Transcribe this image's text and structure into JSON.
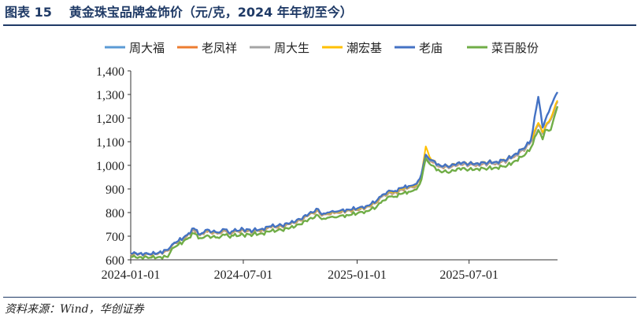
{
  "figure": {
    "label": "图表 15",
    "title": "黄金珠宝品牌金饰价（元/克，2024 年年初至今）"
  },
  "source": "资料来源：Wind，华创证券",
  "chart_data": {
    "type": "line",
    "title": "",
    "xlabel": "",
    "ylabel": "",
    "ylim": [
      600,
      1400
    ],
    "yticks": [
      600,
      700,
      800,
      900,
      1000,
      1100,
      1200,
      1300,
      1400
    ],
    "ytick_labels": [
      "600",
      "700",
      "800",
      "900",
      "1,000",
      "1,100",
      "1,200",
      "1,300",
      "1,400"
    ],
    "xlim": [
      "2024-01-01",
      "2025-11-21"
    ],
    "xticks": [
      "2024-01-01",
      "2024-07-01",
      "2025-01-01",
      "2025-07-01"
    ],
    "grid": false,
    "legend_position": "top",
    "x": [
      "2024-01-01",
      "2024-01-15",
      "2024-02-01",
      "2024-02-15",
      "2024-03-01",
      "2024-03-08",
      "2024-03-15",
      "2024-04-01",
      "2024-04-12",
      "2024-04-22",
      "2024-05-01",
      "2024-05-20",
      "2024-06-01",
      "2024-06-07",
      "2024-06-15",
      "2024-07-01",
      "2024-07-17",
      "2024-08-01",
      "2024-08-15",
      "2024-09-01",
      "2024-09-15",
      "2024-10-01",
      "2024-10-15",
      "2024-10-30",
      "2024-11-05",
      "2024-11-14",
      "2024-11-25",
      "2024-12-01",
      "2024-12-15",
      "2025-01-01",
      "2025-01-15",
      "2025-02-01",
      "2025-02-11",
      "2025-02-24",
      "2025-03-01",
      "2025-03-15",
      "2025-03-25",
      "2025-04-01",
      "2025-04-07",
      "2025-04-15",
      "2025-04-22",
      "2025-05-01",
      "2025-05-15",
      "2025-06-01",
      "2025-06-15",
      "2025-07-01",
      "2025-07-15",
      "2025-08-01",
      "2025-08-15",
      "2025-09-01",
      "2025-09-15",
      "2025-10-01",
      "2025-10-09",
      "2025-10-21",
      "2025-10-28",
      "2025-11-01",
      "2025-11-10",
      "2025-11-21"
    ],
    "series": [
      {
        "name": "周大福",
        "color": "#5b9bd5",
        "values": [
          625,
          625,
          622,
          628,
          640,
          662,
          672,
          702,
          728,
          705,
          722,
          712,
          725,
          712,
          718,
          725,
          720,
          728,
          738,
          742,
          752,
          768,
          790,
          810,
          788,
          795,
          798,
          800,
          808,
          812,
          822,
          842,
          870,
          885,
          882,
          898,
          905,
          908,
          915,
          955,
          1038,
          1018,
          995,
          992,
          1008,
          1002,
          1004,
          1008,
          1010,
          1022,
          1045,
          1075,
          1100,
          1175,
          1135,
          1160,
          1195,
          1270
        ]
      },
      {
        "name": "老凤祥",
        "color": "#ed7d31",
        "values": [
          623,
          623,
          621,
          626,
          638,
          660,
          670,
          700,
          726,
          703,
          720,
          710,
          723,
          710,
          716,
          723,
          718,
          726,
          736,
          740,
          750,
          766,
          788,
          808,
          786,
          793,
          796,
          798,
          806,
          810,
          820,
          840,
          868,
          883,
          880,
          896,
          903,
          906,
          913,
          953,
          1036,
          1016,
          993,
          990,
          1006,
          1000,
          1002,
          1006,
          1008,
          1020,
          1043,
          1073,
          1098,
          1173,
          1133,
          1158,
          1193,
          1268
        ]
      },
      {
        "name": "周大生",
        "color": "#a5a5a5",
        "values": [
          624,
          624,
          621,
          627,
          639,
          661,
          671,
          701,
          727,
          704,
          721,
          711,
          724,
          711,
          717,
          724,
          719,
          727,
          737,
          741,
          751,
          767,
          789,
          809,
          787,
          794,
          797,
          799,
          807,
          811,
          821,
          841,
          869,
          884,
          881,
          897,
          904,
          907,
          914,
          954,
          1037,
          1017,
          994,
          991,
          1007,
          1001,
          1003,
          1007,
          1009,
          1021,
          1044,
          1074,
          1099,
          1174,
          1134,
          1159,
          1194,
          1269
        ]
      },
      {
        "name": "潮宏基",
        "color": "#ffc000",
        "values": [
          626,
          626,
          623,
          629,
          641,
          664,
          674,
          704,
          732,
          707,
          724,
          714,
          727,
          714,
          720,
          727,
          722,
          730,
          740,
          744,
          754,
          770,
          792,
          812,
          790,
          797,
          800,
          802,
          810,
          814,
          824,
          844,
          874,
          888,
          885,
          901,
          908,
          911,
          918,
          960,
          1080,
          1024,
          1000,
          998,
          1014,
          1008,
          1010,
          1014,
          1016,
          1028,
          1051,
          1081,
          1106,
          1180,
          1140,
          1165,
          1200,
          1275
        ]
      },
      {
        "name": "老庙",
        "color": "#4472c4",
        "values": [
          627,
          627,
          624,
          630,
          642,
          665,
          675,
          705,
          733,
          708,
          726,
          716,
          729,
          716,
          722,
          729,
          724,
          732,
          742,
          746,
          756,
          772,
          795,
          815,
          792,
          800,
          803,
          805,
          813,
          817,
          827,
          848,
          876,
          892,
          889,
          905,
          912,
          915,
          922,
          963,
          1045,
          1022,
          1000,
          997,
          1013,
          1007,
          1009,
          1013,
          1015,
          1027,
          1050,
          1082,
          1108,
          1290,
          1160,
          1190,
          1250,
          1310
        ]
      },
      {
        "name": "菜百股份",
        "color": "#70ad47",
        "values": [
          612,
          612,
          609,
          612,
          612,
          648,
          658,
          688,
          712,
          692,
          700,
          695,
          705,
          700,
          702,
          705,
          708,
          712,
          722,
          726,
          736,
          750,
          772,
          788,
          772,
          778,
          780,
          782,
          790,
          796,
          806,
          822,
          850,
          868,
          866,
          880,
          888,
          892,
          898,
          940,
          1030,
          1000,
          975,
          972,
          988,
          982,
          985,
          988,
          990,
          1000,
          1020,
          1050,
          1075,
          1150,
          1110,
          1150,
          1150,
          1250
        ]
      }
    ]
  }
}
